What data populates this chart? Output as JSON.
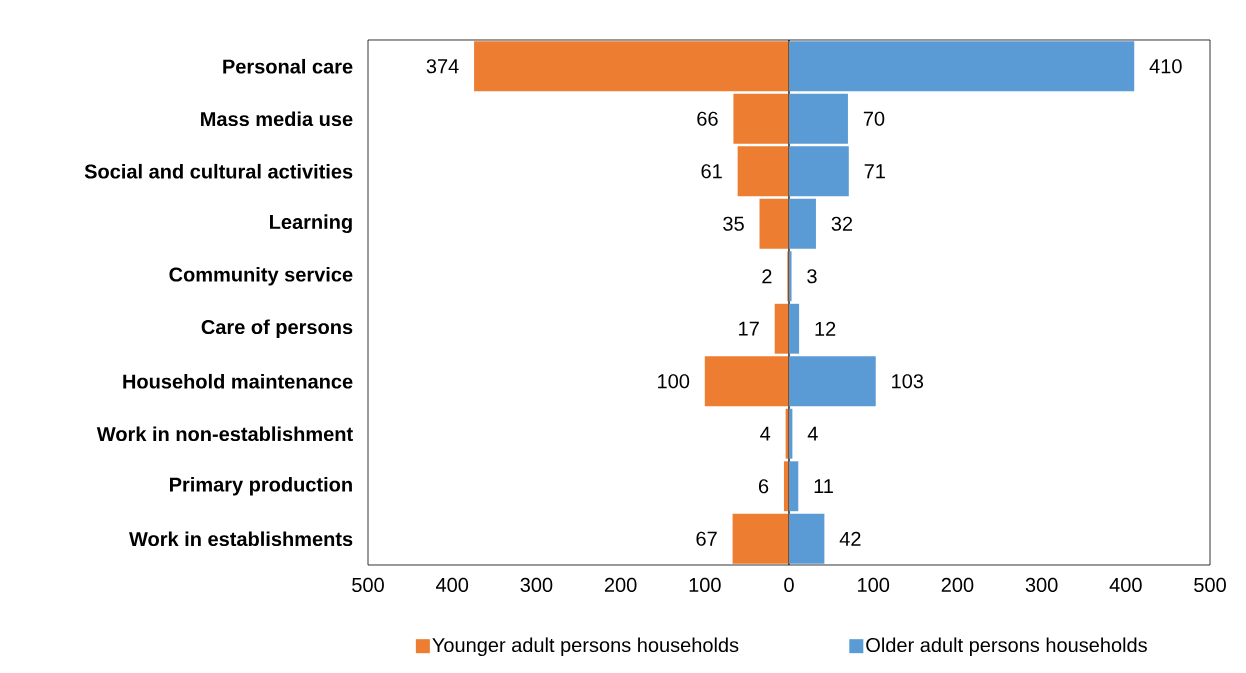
{
  "chart_data": [
    {
      "type": "bar",
      "orientation": "horizontal",
      "categories": [
        "Personal care",
        "Mass media use",
        "Social and cultural activities",
        "Learning",
        "Community service",
        "Care of persons",
        "Household maintenance",
        "Work in non-establishment",
        "Primary production",
        "Work in establishments"
      ],
      "series": [
        {
          "name": "Younger adult persons households",
          "color": "#ed7d31",
          "values": [
            374,
            66,
            61,
            35,
            2,
            17,
            100,
            4,
            6,
            67
          ]
        }
      ],
      "xlim": [
        500,
        0
      ],
      "xticks": [
        500,
        400,
        300,
        200,
        100
      ],
      "data_labels": true,
      "legend": "bottom"
    },
    {
      "type": "bar",
      "orientation": "horizontal",
      "categories": [
        null,
        null,
        null,
        null,
        null,
        null,
        null,
        null,
        null,
        null
      ],
      "series": [
        {
          "name": "Older adult persons households",
          "color": "#5b9bd5",
          "values": [
            410,
            70,
            71,
            32,
            3,
            12,
            103,
            4,
            11,
            42
          ]
        }
      ],
      "xlim": [
        0,
        500
      ],
      "xticks": [
        0,
        100,
        200,
        300,
        400,
        500
      ],
      "data_labels": true,
      "tick_labels": "x",
      "legend": "bottom"
    }
  ]
}
